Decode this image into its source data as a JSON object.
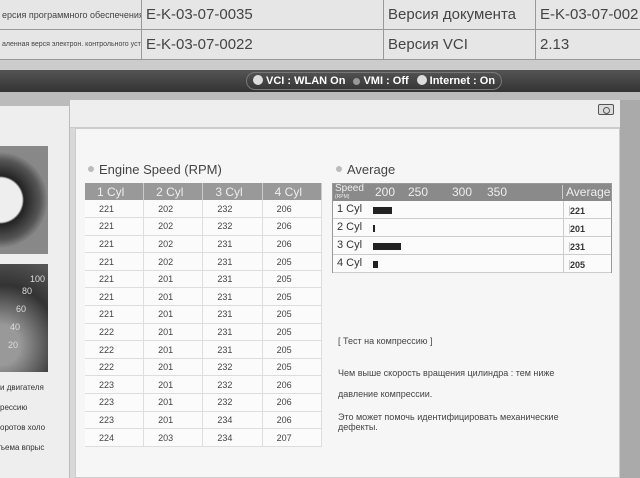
{
  "info_table": {
    "rows": [
      {
        "label1": "ерсия программного обеспечения",
        "value1": "E-K-03-07-0035",
        "label2": "Версия документа",
        "value2": "E-K-03-07-002"
      },
      {
        "label1": "аленная верся электрон. контрольного устр-ва (ECU)",
        "value1": "E-K-03-07-0022",
        "label2": "Версия VCI",
        "value2": "2.13"
      }
    ]
  },
  "status": {
    "vci": "VCI : WLAN On",
    "vmi": "VMI : Off",
    "internet": "Internet : On"
  },
  "left_menu": {
    "gauge_labels": [
      "100",
      "80",
      "60",
      "40",
      "20"
    ],
    "items": [
      "и двигателя",
      "рессию",
      "оротов холо",
      "ъема впрыс"
    ]
  },
  "engine_speed": {
    "title": "Engine Speed (RPM)",
    "headers": [
      "1 Cyl",
      "2 Cyl",
      "3 Cyl",
      "4 Cyl"
    ],
    "rows": [
      [
        "221",
        "202",
        "232",
        "206"
      ],
      [
        "221",
        "202",
        "232",
        "206"
      ],
      [
        "221",
        "202",
        "231",
        "206"
      ],
      [
        "221",
        "202",
        "231",
        "205"
      ],
      [
        "221",
        "201",
        "231",
        "205"
      ],
      [
        "221",
        "201",
        "231",
        "205"
      ],
      [
        "221",
        "201",
        "231",
        "205"
      ],
      [
        "222",
        "201",
        "231",
        "205"
      ],
      [
        "222",
        "201",
        "231",
        "205"
      ],
      [
        "222",
        "201",
        "232",
        "205"
      ],
      [
        "223",
        "201",
        "232",
        "206"
      ],
      [
        "223",
        "201",
        "232",
        "206"
      ],
      [
        "223",
        "201",
        "234",
        "206"
      ],
      [
        "224",
        "203",
        "234",
        "207"
      ]
    ]
  },
  "average": {
    "title": "Average",
    "speed_label": "Speed",
    "speed_unit": "(RPM)",
    "ticks": [
      "200",
      "250",
      "300",
      "350"
    ],
    "avg_header": "Average",
    "axis_min": 200,
    "rows": [
      {
        "label": "1 Cyl",
        "value": 221,
        "text": "221"
      },
      {
        "label": "2 Cyl",
        "value": 201,
        "text": "201"
      },
      {
        "label": "3 Cyl",
        "value": 231,
        "text": "231"
      },
      {
        "label": "4 Cyl",
        "value": 205,
        "text": "205"
      }
    ]
  },
  "notes": {
    "heading": "[ Тест на компрессию ]",
    "line1": "Чем выше скорость вращения цилиндра : тем ниже",
    "line2": "давление компрессии.",
    "line3": "Это может помочь идентифицировать механические дефекты."
  }
}
